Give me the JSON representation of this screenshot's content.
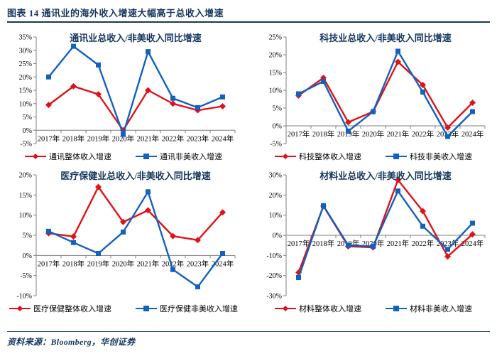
{
  "header": {
    "title": "图表 14  通讯业的海外收入增速大幅高于总收入增速"
  },
  "footer": {
    "source": "资料来源：Bloomberg，华创证券"
  },
  "colors": {
    "accent": "#17375E",
    "red": "#E11119",
    "blue": "#1261BE",
    "axis": "#7F7F7F",
    "text": "#000000"
  },
  "chart_data": [
    {
      "type": "line",
      "title": "通讯业总收入/非美收入同比增速",
      "categories": [
        "2017年",
        "2018年",
        "2019年",
        "2020年",
        "2021年",
        "2022年",
        "2023年",
        "2024年"
      ],
      "ylim": [
        -5,
        35
      ],
      "ytick_step": 5,
      "ytick_format": "percent",
      "grid": false,
      "legend_position": "bottom",
      "series": [
        {
          "name": "通讯整体收入增速",
          "color": "red",
          "marker": "diamond",
          "values": [
            9.5,
            16.5,
            13.5,
            0,
            15,
            10,
            7.5,
            9
          ]
        },
        {
          "name": "通讯非美收入增速",
          "color": "blue",
          "marker": "square",
          "values": [
            20,
            31.5,
            24.5,
            -1.5,
            29.5,
            12,
            8.5,
            12.5
          ]
        }
      ]
    },
    {
      "type": "line",
      "title": "科技业总收入/非美收入同比增速",
      "categories": [
        "2017年",
        "2018年",
        "2019年",
        "2020年",
        "2021年",
        "2022年",
        "2023年",
        "2024年"
      ],
      "ylim": [
        -5,
        25
      ],
      "ytick_step": 5,
      "ytick_format": "percent",
      "grid": false,
      "legend_position": "bottom",
      "series": [
        {
          "name": "科技整体收入增速",
          "color": "red",
          "marker": "diamond",
          "values": [
            8.5,
            13.5,
            1,
            4,
            18,
            11.5,
            -0.5,
            6.5
          ]
        },
        {
          "name": "科技非美收入增速",
          "color": "blue",
          "marker": "square",
          "values": [
            9,
            12.5,
            -1.5,
            4,
            21,
            9.5,
            -3,
            4
          ]
        }
      ]
    },
    {
      "type": "line",
      "title": "医疗保健业总收入/非美收入同比增速",
      "categories": [
        "2017年",
        "2018年",
        "2019年",
        "2020年",
        "2021年",
        "2022年",
        "2023年",
        "2024年"
      ],
      "ylim": [
        -10,
        20
      ],
      "ytick_step": 5,
      "ytick_format": "percent",
      "grid": false,
      "legend_position": "bottom",
      "series": [
        {
          "name": "医疗保健整体收入增速",
          "color": "red",
          "marker": "diamond",
          "values": [
            5.5,
            4.7,
            17,
            8.3,
            11.2,
            4.8,
            3.8,
            10.7
          ]
        },
        {
          "name": "医疗保健非美收入增速",
          "color": "blue",
          "marker": "square",
          "values": [
            6,
            3.2,
            0.5,
            5.8,
            15.8,
            -3.5,
            -7.8,
            0.5
          ]
        }
      ]
    },
    {
      "type": "line",
      "title": "材料业总收入/非美收入同比增速",
      "categories": [
        "2017年",
        "2018年",
        "2019年",
        "2020年",
        "2021年",
        "2022年",
        "2023年",
        "2024年"
      ],
      "ylim": [
        -30,
        30
      ],
      "ytick_step": 10,
      "ytick_format": "percent",
      "grid": false,
      "legend_position": "bottom",
      "series": [
        {
          "name": "材料整体收入增速",
          "color": "red",
          "marker": "diamond",
          "values": [
            -18.5,
            14.5,
            -5.5,
            -6,
            27.5,
            12,
            -10.5,
            0.5
          ]
        },
        {
          "name": "材料非美收入增速",
          "color": "blue",
          "marker": "square",
          "values": [
            -21,
            14.7,
            -5,
            -5.5,
            22,
            4.5,
            -7,
            6
          ]
        }
      ]
    }
  ]
}
